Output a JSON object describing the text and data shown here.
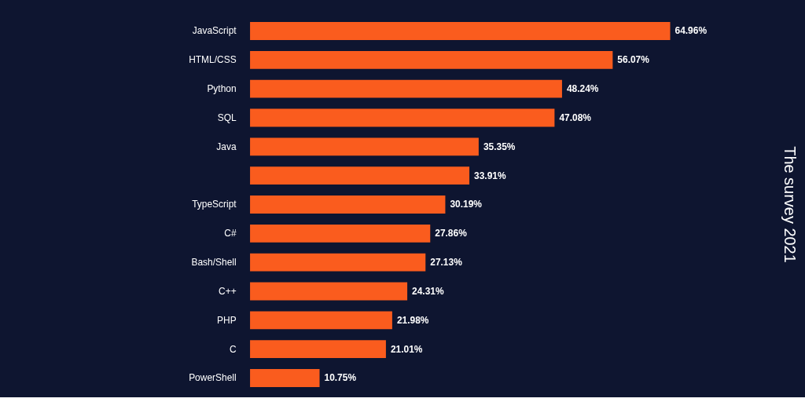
{
  "chart_data": {
    "type": "bar",
    "orientation": "horizontal",
    "title": "The survey 2021",
    "categories": [
      "JavaScript",
      "HTML/CSS",
      "Python",
      "SQL",
      "Java",
      null,
      "TypeScript",
      "C#",
      "Bash/Shell",
      "C++",
      "PHP",
      "C",
      "PowerShell"
    ],
    "values": [
      64.96,
      56.07,
      48.24,
      47.08,
      35.35,
      33.91,
      30.19,
      27.86,
      27.13,
      24.31,
      21.98,
      21.01,
      10.75
    ],
    "value_labels": [
      "64.96%",
      "56.07%",
      "48.24%",
      "47.08%",
      "35.35%",
      "33.91%",
      "30.19%",
      "27.86%",
      "27.13%",
      "24.31%",
      "21.98%",
      "21.01%",
      "10.75%"
    ],
    "color": "#fa5c1e"
  }
}
